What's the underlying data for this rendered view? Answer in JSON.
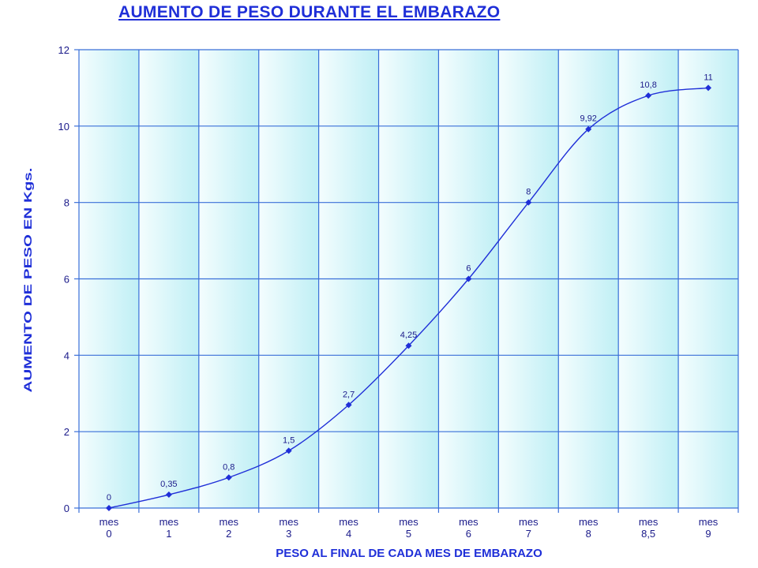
{
  "chart_data": {
    "type": "line",
    "title": "AUMENTO DE PESO DURANTE EL EMBARAZO",
    "xlabel": "PESO AL FINAL DE CADA MES DE EMBARAZO",
    "ylabel": "AUMENTO DE PESO EN Kgs.",
    "categories": [
      [
        "mes",
        "0"
      ],
      [
        "mes",
        "1"
      ],
      [
        "mes",
        "2"
      ],
      [
        "mes",
        "3"
      ],
      [
        "mes",
        "4"
      ],
      [
        "mes",
        "5"
      ],
      [
        "mes",
        "6"
      ],
      [
        "mes",
        "7"
      ],
      [
        "mes",
        "8"
      ],
      [
        "mes",
        "8,5"
      ],
      [
        "mes",
        "9"
      ]
    ],
    "values": [
      0,
      0.35,
      0.8,
      1.5,
      2.7,
      4.25,
      6,
      8,
      9.92,
      10.8,
      11
    ],
    "data_labels": [
      "0",
      "0,35",
      "0,8",
      "1,5",
      "2,7",
      "4,25",
      "6",
      "8",
      "9,92",
      "10,8",
      "11"
    ],
    "ylim": [
      0,
      12
    ],
    "yticks": [
      0,
      2,
      4,
      6,
      8,
      10,
      12
    ],
    "ytick_labels": [
      "0",
      "2",
      "4",
      "6",
      "8",
      "10",
      "12"
    ],
    "grid": true,
    "colors": {
      "line": "#1f2fd8",
      "grid": "#3a6fd8",
      "plot_bg_light": "#f4fdfe",
      "plot_bg_dark": "#bfeff5",
      "title": "#1f2fd8",
      "text": "#1a1a8a"
    }
  }
}
